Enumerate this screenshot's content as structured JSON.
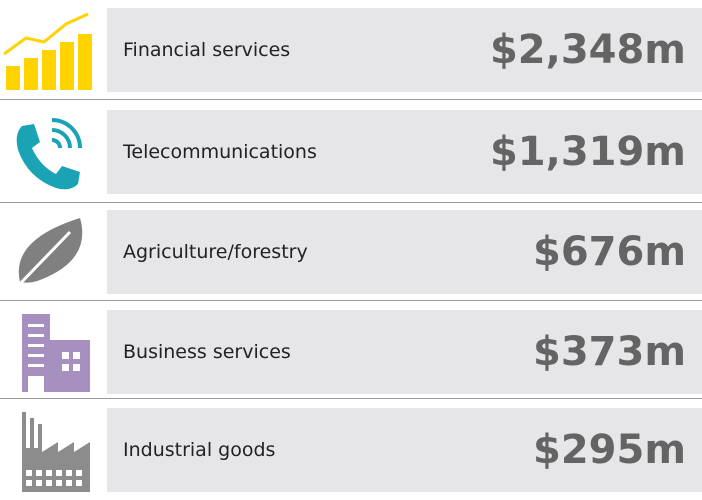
{
  "items": [
    {
      "label": "Financial services",
      "value": "$2,348m"
    },
    {
      "label": "Telecommunications",
      "value": "$1,319m"
    },
    {
      "label": "Agriculture/forestry",
      "value": "$676m"
    },
    {
      "label": "Business services",
      "value": "$373m"
    },
    {
      "label": "Industrial goods",
      "value": "$295m"
    }
  ]
}
